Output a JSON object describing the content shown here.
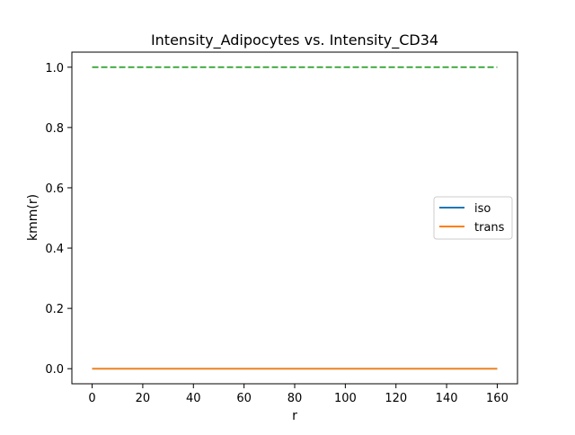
{
  "chart_data": {
    "type": "line",
    "title": "Intensity_Adipocytes vs. Intensity_CD34",
    "xlabel": "r",
    "ylabel": "kmm(r)",
    "xlim": [
      -8,
      168
    ],
    "ylim": [
      -0.05,
      1.05
    ],
    "xticks": [
      0,
      20,
      40,
      60,
      80,
      100,
      120,
      140,
      160
    ],
    "yticks": [
      0.0,
      0.2,
      0.4,
      0.6,
      0.8,
      1.0
    ],
    "grid": false,
    "legend_position": "center-right",
    "series": [
      {
        "name": "iso",
        "color": "#1f77b4",
        "line_style": "solid",
        "x": [
          0,
          160
        ],
        "y": [
          0.0,
          0.0
        ]
      },
      {
        "name": "trans",
        "color": "#ff7f0e",
        "line_style": "solid",
        "x": [
          0,
          160
        ],
        "y": [
          0.0,
          0.0
        ]
      },
      {
        "color": "#2ca02c",
        "line_style": "dashed",
        "x": [
          0,
          160
        ],
        "y": [
          1.0,
          1.0
        ]
      }
    ]
  }
}
